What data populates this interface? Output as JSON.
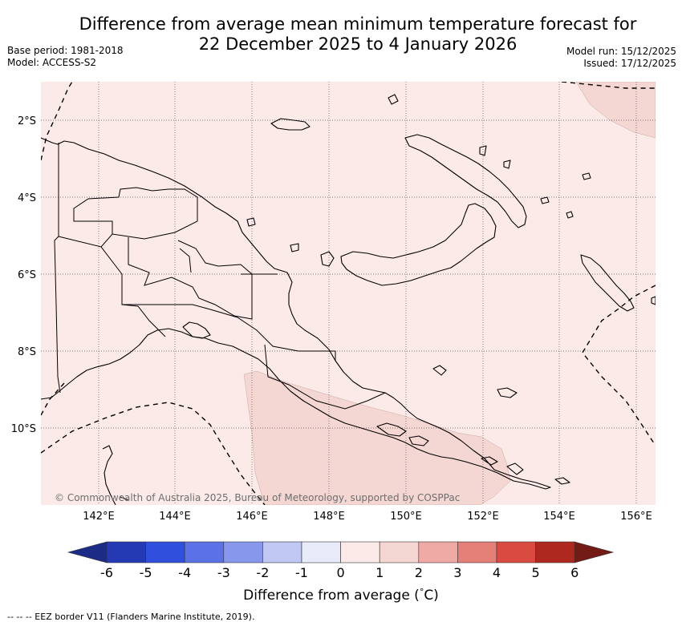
{
  "title": {
    "line1": "Difference from average mean minimum temperature forecast for",
    "line2": "22 December 2025 to 4 January 2026"
  },
  "meta": {
    "base_period": "Base period: 1981-2018",
    "model": "Model: ACCESS-S2",
    "model_run": "Model run: 15/12/2025",
    "issued": "Issued: 17/12/2025"
  },
  "map": {
    "region": "Papua New Guinea",
    "lat_labels": [
      "2°S",
      "4°S",
      "6°S",
      "8°S",
      "10°S"
    ],
    "lon_labels": [
      "142°E",
      "144°E",
      "146°E",
      "148°E",
      "150°E",
      "152°E",
      "154°E",
      "156°E"
    ],
    "attribution": "© Commonwealth of Australia 2025, Bureau of Meteorology, supported by COSPPac",
    "field_colors": {
      "background_class": "#fbeae8",
      "warmer_class": "#f4d6d2"
    }
  },
  "colorbar": {
    "title": "Difference from average (",
    "title_unit": "C)",
    "degree_symbol": "°",
    "ticks": [
      "-6",
      "-5",
      "-4",
      "-3",
      "-2",
      "-1",
      "0",
      "1",
      "2",
      "3",
      "4",
      "5",
      "6"
    ],
    "colors": [
      "#1b2b86",
      "#2439b4",
      "#2f4fdc",
      "#5a72e6",
      "#8798ec",
      "#c1c8f4",
      "#e8ebfa",
      "#fbeae8",
      "#f4d6d2",
      "#efaaa5",
      "#e58079",
      "#db4a40",
      "#ae2820",
      "#731c15"
    ]
  },
  "footnote": "--  --  -- EEZ border V11 (Flanders Marine Institute, 2019)."
}
